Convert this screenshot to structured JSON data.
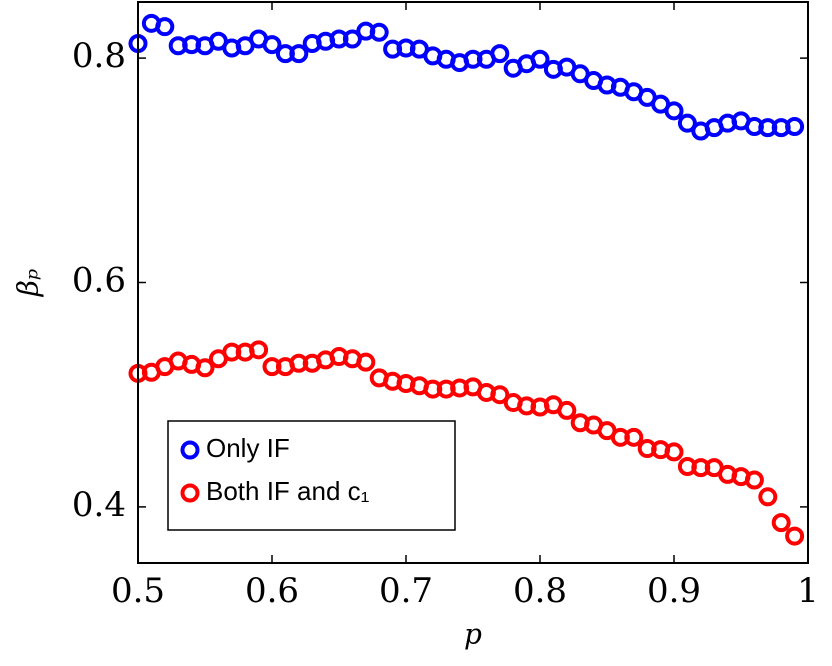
{
  "chart_data": {
    "type": "scatter",
    "xlabel": "p",
    "ylabel": "βₚ",
    "x": [
      0.5,
      0.51,
      0.52,
      0.53,
      0.54,
      0.55,
      0.56,
      0.57,
      0.58,
      0.59,
      0.6,
      0.61,
      0.62,
      0.63,
      0.64,
      0.65,
      0.66,
      0.67,
      0.68,
      0.69,
      0.7,
      0.71,
      0.72,
      0.73,
      0.74,
      0.75,
      0.76,
      0.77,
      0.78,
      0.79,
      0.8,
      0.81,
      0.82,
      0.83,
      0.84,
      0.85,
      0.86,
      0.87,
      0.88,
      0.89,
      0.9,
      0.91,
      0.92,
      0.93,
      0.94,
      0.95,
      0.96,
      0.97,
      0.98,
      0.99
    ],
    "series": [
      {
        "name": "Only IF",
        "color": "#0000ff",
        "values": [
          0.813,
          0.831,
          0.828,
          0.811,
          0.812,
          0.811,
          0.815,
          0.809,
          0.811,
          0.817,
          0.812,
          0.804,
          0.804,
          0.813,
          0.815,
          0.817,
          0.817,
          0.824,
          0.823,
          0.808,
          0.809,
          0.808,
          0.802,
          0.799,
          0.796,
          0.799,
          0.799,
          0.804,
          0.791,
          0.795,
          0.799,
          0.79,
          0.792,
          0.786,
          0.78,
          0.776,
          0.774,
          0.77,
          0.765,
          0.759,
          0.753,
          0.742,
          0.735,
          0.738,
          0.742,
          0.744,
          0.739,
          0.738,
          0.738,
          0.739
        ]
      },
      {
        "name": "Both IF and c₁",
        "color": "#ff0000",
        "values": [
          0.519,
          0.52,
          0.525,
          0.53,
          0.527,
          0.524,
          0.532,
          0.538,
          0.538,
          0.54,
          0.525,
          0.525,
          0.528,
          0.528,
          0.531,
          0.534,
          0.532,
          0.529,
          0.515,
          0.512,
          0.51,
          0.508,
          0.505,
          0.505,
          0.506,
          0.507,
          0.502,
          0.5,
          0.493,
          0.49,
          0.489,
          0.491,
          0.486,
          0.475,
          0.473,
          0.468,
          0.462,
          0.462,
          0.452,
          0.451,
          0.449,
          0.436,
          0.435,
          0.435,
          0.429,
          0.427,
          0.424,
          0.409,
          0.386,
          0.374
        ]
      }
    ],
    "xlim": [
      0.5,
      1
    ],
    "ylim": [
      0.35,
      0.85
    ],
    "xticks": [
      0.5,
      0.6,
      0.7,
      0.8,
      0.9,
      1
    ],
    "yticks": [
      0.4,
      0.6,
      0.8
    ],
    "legend": "lower left"
  }
}
